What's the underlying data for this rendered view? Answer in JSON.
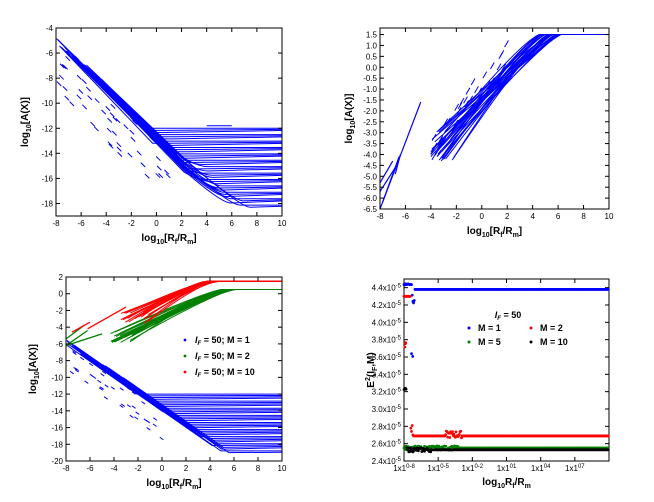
{
  "chart_data": [
    {
      "type": "line",
      "panel": "top-left",
      "ylabel": "log10[A(X)]",
      "xlabel": "log10[Rf/Rm]",
      "xlim": [
        -8,
        10
      ],
      "ylim": [
        -19,
        -4
      ],
      "xticks": [
        -8,
        -6,
        -4,
        -2,
        0,
        2,
        4,
        6,
        8,
        10
      ],
      "yticks": [
        -18,
        -16,
        -14,
        -12,
        -10,
        -8,
        -6,
        -4
      ],
      "xtick_labels": [
        "-8",
        "-6",
        "-4",
        "-2",
        "0",
        "2",
        "4",
        "6",
        "8",
        "10"
      ],
      "ytick_labels": [
        "-18",
        "-16",
        "-14",
        "-12",
        "-10",
        "-8",
        "-6",
        "-4"
      ],
      "series": [
        {
          "name": "family of curves",
          "color": "#0000ff",
          "start": [
            -8,
            -4.5
          ],
          "knee_x": [
            0,
            2
          ],
          "plateaus": [
            -12,
            -12.5,
            -13,
            -13.5,
            -14,
            -14.5,
            -15,
            -15.5,
            -16,
            -16.5,
            -17,
            -17.5,
            -18.3
          ]
        }
      ]
    },
    {
      "type": "line",
      "panel": "top-right",
      "ylabel": "log10[A(X)]",
      "xlabel": "log10[Rf/Rm]",
      "xlim": [
        -8,
        10
      ],
      "ylim": [
        -6.5,
        1.8
      ],
      "xticks": [
        -8,
        -6,
        -4,
        -2,
        0,
        2,
        4,
        6,
        8,
        10
      ],
      "yticks": [
        -6.5,
        -6,
        -5.5,
        -5,
        -4.5,
        -4,
        -3.5,
        -3,
        -2.5,
        -2,
        -1.5,
        -1,
        -0.5,
        0,
        0.5,
        1,
        1.5
      ],
      "xtick_labels": [
        "-8",
        "-6",
        "-4",
        "-2",
        "0",
        "2",
        "4",
        "6",
        "8",
        "10"
      ],
      "ytick_labels": [
        "-6.5",
        "-6.0",
        "-5.5",
        "-5.0",
        "-4.5",
        "-4.0",
        "-3.5",
        "-3.0",
        "-2.5",
        "-2.0",
        "-1.5",
        "-1.0",
        "-0.5",
        "0.0",
        "0.5",
        "1.0",
        "1.5"
      ],
      "series": [
        {
          "name": "family of curves",
          "color": "#0000ff",
          "start": [
            -4,
            -4
          ],
          "plateau_y": 1.5,
          "plateau_x": [
            5,
            10
          ]
        }
      ]
    },
    {
      "type": "line",
      "panel": "bottom-left",
      "ylabel": "log10[A(X)]",
      "xlabel": "log10[Rf/Rm]",
      "xlim": [
        -8,
        10
      ],
      "ylim": [
        -20,
        2
      ],
      "xticks": [
        -8,
        -6,
        -4,
        -2,
        0,
        2,
        4,
        6,
        8,
        10
      ],
      "yticks": [
        -20,
        -18,
        -16,
        -14,
        -12,
        -10,
        -8,
        -6,
        -4,
        -2,
        0,
        2
      ],
      "xtick_labels": [
        "-8",
        "-6",
        "-4",
        "-2",
        "0",
        "2",
        "4",
        "6",
        "8",
        "10"
      ],
      "ytick_labels": [
        "-20",
        "-18",
        "-16",
        "-14",
        "-12",
        "-10",
        "-8",
        "-6",
        "-4",
        "-2",
        "0",
        "2"
      ],
      "legend": [
        {
          "label": "IF = 50; M = 1",
          "prefix": "I",
          "sub": "F",
          "rest": " = 50; M = 1",
          "color": "#0000ff"
        },
        {
          "label": "IF = 50; M = 2",
          "prefix": "I",
          "sub": "F",
          "rest": " = 50; M = 2",
          "color": "#008000"
        },
        {
          "label": "IF = 50; M = 10",
          "prefix": "I",
          "sub": "F",
          "rest": " = 50; M = 10",
          "color": "#ff0000"
        }
      ],
      "series": [
        {
          "name": "M = 1",
          "color": "#0000ff",
          "plateaus": [
            -12,
            -13,
            -14,
            -15,
            -16,
            -17,
            -18,
            -19
          ]
        },
        {
          "name": "M = 2",
          "color": "#008000",
          "plateau_y": 0.5
        },
        {
          "name": "M = 10",
          "color": "#ff0000",
          "plateau_y": 1.5
        }
      ]
    },
    {
      "type": "scatter",
      "panel": "bottom-right",
      "ylabel": "E2(IF,M)",
      "xlabel": "log10Rf/Rm",
      "xscale": "log",
      "xlim_exp": [
        -8,
        10
      ],
      "ylim": [
        2.4e-05,
        4.5e-05
      ],
      "xticks_exp": [
        -8,
        -5,
        -2,
        1,
        4,
        7
      ],
      "xtick_labels": [
        "1x10-8",
        "1x10-5",
        "1x10-2",
        "1x101",
        "1x104",
        "1x107"
      ],
      "yticks": [
        2.4,
        2.6,
        2.8,
        3.0,
        3.2,
        3.4,
        3.6,
        3.8,
        4.0,
        4.2,
        4.4
      ],
      "ytick_labels": [
        "2.4x10-5",
        "2.6x10-5",
        "2.8x10-5",
        "3.0x10-5",
        "3.2x10-5",
        "3.4x10-5",
        "3.6x10-5",
        "3.8x10-5",
        "4.0x10-5",
        "4.2x10-5",
        "4.4x10-5"
      ],
      "legend_title": "IF = 50",
      "legend": [
        {
          "label": "M = 1",
          "color": "#0000ff"
        },
        {
          "label": "M = 2",
          "color": "#ff0000"
        },
        {
          "label": "M = 5",
          "color": "#008000"
        },
        {
          "label": "M = 10",
          "color": "#000000"
        }
      ],
      "series": [
        {
          "name": "M = 1",
          "color": "#0000ff",
          "y_plateau": 4.38
        },
        {
          "name": "M = 2",
          "color": "#ff0000",
          "y_plateau": 2.69
        },
        {
          "name": "M = 5",
          "color": "#008000",
          "y_plateau": 2.55
        },
        {
          "name": "M = 10",
          "color": "#000000",
          "y_plateau": 2.53
        }
      ]
    }
  ]
}
